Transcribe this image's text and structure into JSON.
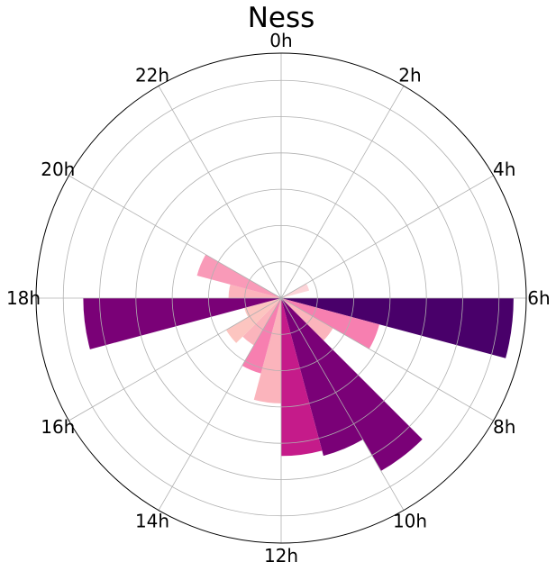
{
  "chart_data": {
    "type": "polar-bar",
    "title": "Ness",
    "theta_direction": "clockwise",
    "theta_zero": "top",
    "grid": true,
    "rlim": [
      0,
      13.5
    ],
    "r_gridlines": [
      2,
      4,
      6,
      8,
      10,
      12
    ],
    "tick_labels": [
      "0h",
      "2h",
      "4h",
      "6h",
      "8h",
      "10h",
      "12h",
      "14h",
      "16h",
      "18h",
      "20h",
      "22h"
    ],
    "hours": [
      0,
      1,
      2,
      3,
      4,
      5,
      6,
      7,
      8,
      9,
      10,
      11,
      12,
      13,
      14,
      15,
      16,
      17,
      18,
      19,
      20,
      21,
      22,
      23
    ],
    "values": [
      0,
      0,
      0,
      0,
      1.6,
      0.2,
      12.8,
      5.6,
      3.3,
      11.0,
      9.0,
      8.7,
      5.8,
      4.3,
      3.0,
      3.5,
      2.1,
      10.9,
      2.9,
      4.8,
      0,
      0,
      0,
      0
    ],
    "colors": [
      "#ffffff",
      "#ffffff",
      "#ffffff",
      "#ffffff",
      "#fcd4d8",
      "#fcd4d8",
      "#49006a",
      "#f77fb0",
      "#fbb4bc",
      "#7a0177",
      "#7a0177",
      "#c51b8a",
      "#fbb4bc",
      "#f77fb0",
      "#fbb4bc",
      "#fcc5c0",
      "#fcc5c0",
      "#7a0177",
      "#fbb4bc",
      "#f99ab8",
      "#ffffff",
      "#ffffff",
      "#ffffff",
      "#ffffff"
    ]
  }
}
